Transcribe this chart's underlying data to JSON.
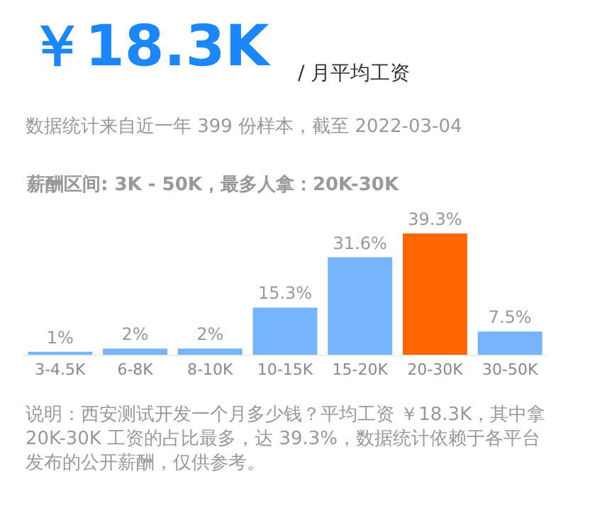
{
  "chart_data": {
    "type": "bar",
    "title": "￥18.3K",
    "subtitle": "/ 月平均工资",
    "annotations": [
      "数据统计来自近一年 399 份样本，截至 2022-03-04",
      "薪酬区间: 3K - 50K，最多人拿：20K-30K",
      "说明：西安测试开发一个月多少钱？平均工资 ￥18.3K，其中拿 20K-30K 工资的占比最多，达 39.3%，数据统计依赖于各平台发布的公开薪酬，仅供参考。"
    ],
    "categories": [
      "3-4.5K",
      "6-8K",
      "8-10K",
      "10-15K",
      "15-20K",
      "20-30K",
      "30-50K"
    ],
    "values": [
      1,
      2,
      2,
      15.3,
      31.6,
      39.3,
      7.5
    ],
    "value_labels": [
      "1%",
      "2%",
      "2%",
      "15.3%",
      "31.6%",
      "39.3%",
      "7.5%"
    ],
    "colors": [
      "#76b5fd",
      "#76b5fd",
      "#76b5fd",
      "#76b5fd",
      "#76b5fd",
      "#ff6600",
      "#76b5fd"
    ]
  }
}
